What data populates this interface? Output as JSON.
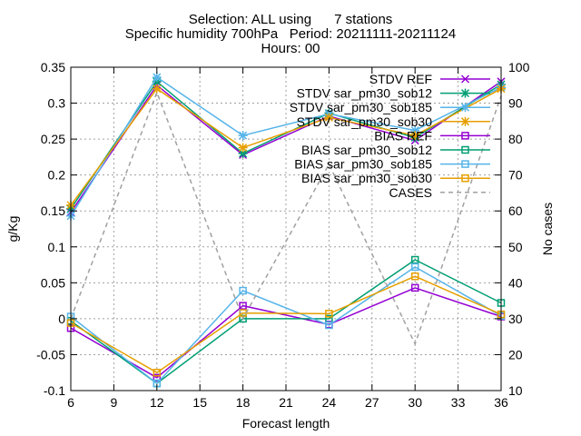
{
  "chart_data": {
    "type": "line",
    "title_lines": [
      "Selection: ALL using      7 stations",
      "Specific humidity 700hPa   Period: 20211111-20211124",
      "Hours: 00"
    ],
    "xlabel": "Forecast length",
    "ylabel": "g/Kg",
    "y2label": "No cases",
    "x": [
      6,
      12,
      18,
      24,
      30,
      36
    ],
    "xticks": [
      6,
      9,
      12,
      15,
      18,
      21,
      24,
      27,
      30,
      33,
      36
    ],
    "xlim": [
      6,
      36
    ],
    "ylim": [
      -0.1,
      0.35
    ],
    "yticks": [
      -0.1,
      -0.05,
      0,
      0.05,
      0.1,
      0.15,
      0.2,
      0.25,
      0.3,
      0.35
    ],
    "ytick_labels": [
      "-0.1",
      "-0.05",
      "0",
      "0.05",
      "0.1",
      "0.15",
      "0.2",
      "0.25",
      "0.3",
      "0.35"
    ],
    "y2lim": [
      10,
      100
    ],
    "y2ticks": [
      10,
      20,
      30,
      40,
      50,
      60,
      70,
      80,
      90,
      100
    ],
    "grid": true,
    "legend_position": "top-right",
    "series": [
      {
        "name": "STDV REF",
        "color": "#9400d3",
        "marker": "x-cross",
        "dash": "solid",
        "axis": "y1",
        "values": [
          0.148,
          0.325,
          0.228,
          0.282,
          0.248,
          0.33
        ]
      },
      {
        "name": "STDV sar_pm30_sob12",
        "color": "#009e73",
        "marker": "star",
        "dash": "solid",
        "axis": "y1",
        "values": [
          0.153,
          0.33,
          0.23,
          0.286,
          0.252,
          0.326
        ]
      },
      {
        "name": "STDV sar_pm30_sob185",
        "color": "#56b4e9",
        "marker": "star",
        "dash": "solid",
        "axis": "y1",
        "values": [
          0.143,
          0.336,
          0.255,
          0.285,
          0.262,
          0.322
        ]
      },
      {
        "name": "STDV sar_pm30_sob30",
        "color": "#e69f00",
        "marker": "star",
        "dash": "solid",
        "axis": "y1",
        "values": [
          0.158,
          0.32,
          0.238,
          0.28,
          0.255,
          0.32
        ]
      },
      {
        "name": "BIAS REF",
        "color": "#9400d3",
        "marker": "square",
        "dash": "solid",
        "axis": "y1",
        "values": [
          -0.013,
          -0.082,
          0.018,
          -0.008,
          0.043,
          0.003
        ]
      },
      {
        "name": "BIAS sar_pm30_sob12",
        "color": "#009e73",
        "marker": "square",
        "dash": "solid",
        "axis": "y1",
        "values": [
          -0.003,
          -0.09,
          0.0,
          0.0,
          0.082,
          0.022
        ]
      },
      {
        "name": "BIAS sar_pm30_sob185",
        "color": "#56b4e9",
        "marker": "square",
        "dash": "solid",
        "axis": "y1",
        "values": [
          0.003,
          -0.09,
          0.039,
          -0.009,
          0.072,
          0.004
        ]
      },
      {
        "name": "BIAS sar_pm30_sob30",
        "color": "#e69f00",
        "marker": "square",
        "dash": "solid",
        "axis": "y1",
        "values": [
          -0.006,
          -0.075,
          0.008,
          0.007,
          0.059,
          0.006
        ]
      },
      {
        "name": "CASES",
        "color": "#a0a0a0",
        "marker": "none",
        "dash": "dashed",
        "axis": "y2",
        "values": [
          30,
          93,
          30,
          73,
          23,
          92
        ]
      }
    ]
  }
}
